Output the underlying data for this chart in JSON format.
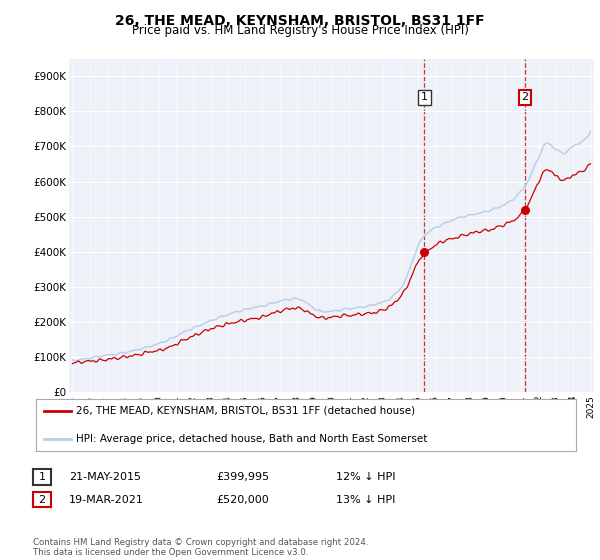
{
  "title": "26, THE MEAD, KEYNSHAM, BRISTOL, BS31 1FF",
  "subtitle": "Price paid vs. HM Land Registry's House Price Index (HPI)",
  "ylim": [
    0,
    950000
  ],
  "yticks": [
    0,
    100000,
    200000,
    300000,
    400000,
    500000,
    600000,
    700000,
    800000,
    900000
  ],
  "ytick_labels": [
    "£0",
    "£100K",
    "£200K",
    "£300K",
    "£400K",
    "£500K",
    "£600K",
    "£700K",
    "£800K",
    "£900K"
  ],
  "hpi_color": "#b8d0e8",
  "price_color": "#cc0000",
  "sale1_x": 2015.37,
  "sale1_price": 399995,
  "sale2_x": 2021.21,
  "sale2_price": 520000,
  "sale1_date": "21-MAY-2015",
  "sale1_pct": "12% ↓ HPI",
  "sale2_date": "19-MAR-2021",
  "sale2_pct": "13% ↓ HPI",
  "legend_price_label": "26, THE MEAD, KEYNSHAM, BRISTOL, BS31 1FF (detached house)",
  "legend_hpi_label": "HPI: Average price, detached house, Bath and North East Somerset",
  "footer": "Contains HM Land Registry data © Crown copyright and database right 2024.\nThis data is licensed under the Open Government Licence v3.0.",
  "background_color": "#ffffff",
  "plot_bg_color": "#eef2f8",
  "x_start_year": 1995,
  "x_end_year": 2025
}
